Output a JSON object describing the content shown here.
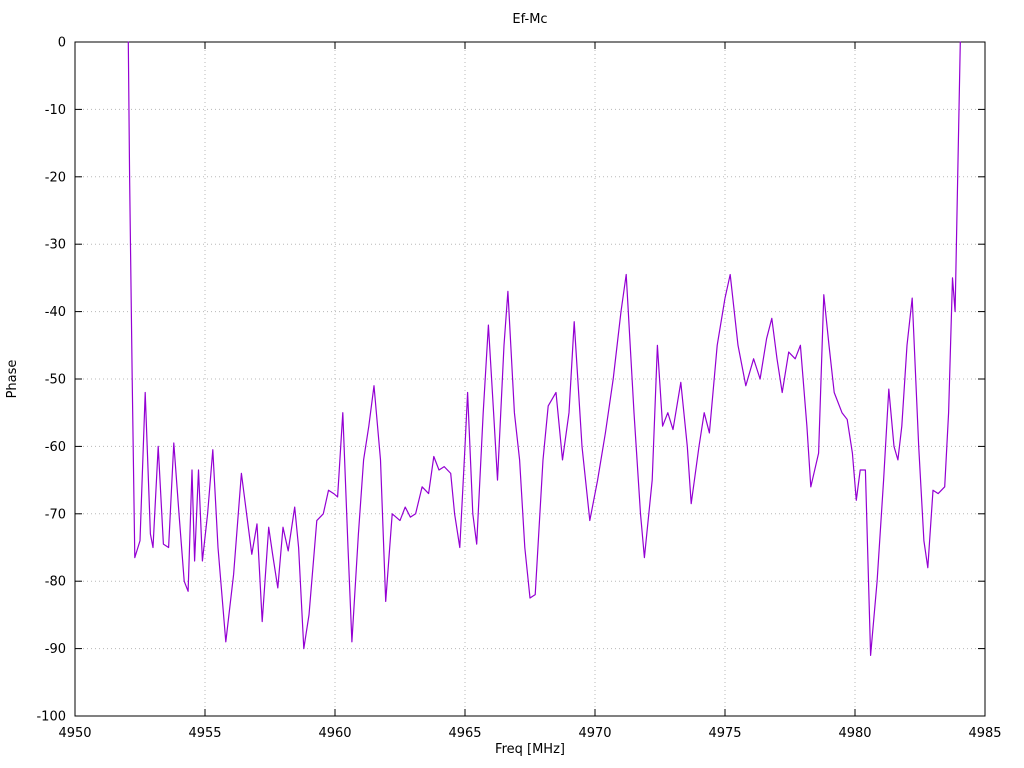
{
  "chart_data": {
    "type": "line",
    "title": "Ef-Mc",
    "xlabel": "Freq [MHz]",
    "ylabel": "Phase",
    "xlim": [
      4950,
      4985
    ],
    "ylim": [
      -100,
      0
    ],
    "xticks": [
      4950,
      4955,
      4960,
      4965,
      4970,
      4975,
      4980,
      4985
    ],
    "yticks": [
      0,
      -10,
      -20,
      -30,
      -40,
      -50,
      -60,
      -70,
      -80,
      -90,
      -100
    ],
    "grid": true,
    "legend": "none",
    "line_color": "#9400d3",
    "grid_color": "#b8b8b8",
    "border_color": "#000000",
    "series_name": "Ef-Mc",
    "points": [
      [
        4952.05,
        0
      ],
      [
        4952.1,
        -20
      ],
      [
        4952.2,
        -50
      ],
      [
        4952.3,
        -76.5
      ],
      [
        4952.5,
        -74
      ],
      [
        4952.7,
        -52
      ],
      [
        4952.9,
        -73
      ],
      [
        4953.0,
        -75
      ],
      [
        4953.2,
        -60
      ],
      [
        4953.4,
        -74.5
      ],
      [
        4953.6,
        -75
      ],
      [
        4953.8,
        -59.5
      ],
      [
        4954.0,
        -70
      ],
      [
        4954.2,
        -80
      ],
      [
        4954.35,
        -81.5
      ],
      [
        4954.5,
        -63.5
      ],
      [
        4954.6,
        -77
      ],
      [
        4954.75,
        -63.5
      ],
      [
        4954.9,
        -77
      ],
      [
        4955.1,
        -70
      ],
      [
        4955.3,
        -60.5
      ],
      [
        4955.5,
        -75
      ],
      [
        4955.8,
        -89
      ],
      [
        4956.1,
        -79
      ],
      [
        4956.4,
        -64
      ],
      [
        4956.6,
        -70
      ],
      [
        4956.8,
        -76
      ],
      [
        4957.0,
        -71.5
      ],
      [
        4957.2,
        -86
      ],
      [
        4957.45,
        -72
      ],
      [
        4957.6,
        -76
      ],
      [
        4957.8,
        -81
      ],
      [
        4958.0,
        -72
      ],
      [
        4958.2,
        -75.5
      ],
      [
        4958.45,
        -69
      ],
      [
        4958.6,
        -75
      ],
      [
        4958.8,
        -90
      ],
      [
        4959.0,
        -85
      ],
      [
        4959.3,
        -71
      ],
      [
        4959.55,
        -70
      ],
      [
        4959.75,
        -66.5
      ],
      [
        4959.95,
        -67
      ],
      [
        4960.1,
        -67.5
      ],
      [
        4960.3,
        -55
      ],
      [
        4960.5,
        -75
      ],
      [
        4960.65,
        -89
      ],
      [
        4960.9,
        -73
      ],
      [
        4961.1,
        -62
      ],
      [
        4961.3,
        -57
      ],
      [
        4961.5,
        -51
      ],
      [
        4961.75,
        -62
      ],
      [
        4961.95,
        -83
      ],
      [
        4962.2,
        -70
      ],
      [
        4962.5,
        -71
      ],
      [
        4962.7,
        -69
      ],
      [
        4962.9,
        -70.5
      ],
      [
        4963.1,
        -70
      ],
      [
        4963.35,
        -66
      ],
      [
        4963.6,
        -67
      ],
      [
        4963.8,
        -61.5
      ],
      [
        4964.0,
        -63.5
      ],
      [
        4964.2,
        -63
      ],
      [
        4964.45,
        -64
      ],
      [
        4964.6,
        -70
      ],
      [
        4964.8,
        -75
      ],
      [
        4965.0,
        -60
      ],
      [
        4965.1,
        -52
      ],
      [
        4965.3,
        -70
      ],
      [
        4965.45,
        -74.5
      ],
      [
        4965.7,
        -55
      ],
      [
        4965.9,
        -42
      ],
      [
        4966.1,
        -55
      ],
      [
        4966.25,
        -65
      ],
      [
        4966.5,
        -45
      ],
      [
        4966.65,
        -37
      ],
      [
        4966.9,
        -55
      ],
      [
        4967.1,
        -62
      ],
      [
        4967.3,
        -75
      ],
      [
        4967.5,
        -82.5
      ],
      [
        4967.7,
        -82
      ],
      [
        4968.0,
        -62
      ],
      [
        4968.2,
        -54
      ],
      [
        4968.5,
        -52
      ],
      [
        4968.75,
        -62
      ],
      [
        4969.0,
        -55
      ],
      [
        4969.2,
        -41.5
      ],
      [
        4969.5,
        -60
      ],
      [
        4969.8,
        -71
      ],
      [
        4970.1,
        -65
      ],
      [
        4970.4,
        -58
      ],
      [
        4970.7,
        -50
      ],
      [
        4971.0,
        -40
      ],
      [
        4971.2,
        -34.5
      ],
      [
        4971.5,
        -55
      ],
      [
        4971.75,
        -70
      ],
      [
        4971.9,
        -76.5
      ],
      [
        4972.2,
        -65
      ],
      [
        4972.4,
        -45
      ],
      [
        4972.6,
        -57
      ],
      [
        4972.8,
        -55
      ],
      [
        4973.0,
        -57.5
      ],
      [
        4973.3,
        -50.5
      ],
      [
        4973.55,
        -60
      ],
      [
        4973.7,
        -68.5
      ],
      [
        4974.0,
        -60
      ],
      [
        4974.2,
        -55
      ],
      [
        4974.4,
        -58
      ],
      [
        4974.7,
        -45
      ],
      [
        4975.0,
        -38
      ],
      [
        4975.2,
        -34.5
      ],
      [
        4975.5,
        -45
      ],
      [
        4975.8,
        -51
      ],
      [
        4976.1,
        -47
      ],
      [
        4976.35,
        -50
      ],
      [
        4976.6,
        -44
      ],
      [
        4976.8,
        -41
      ],
      [
        4977.0,
        -47
      ],
      [
        4977.2,
        -52
      ],
      [
        4977.45,
        -46
      ],
      [
        4977.7,
        -47
      ],
      [
        4977.9,
        -45
      ],
      [
        4978.15,
        -57
      ],
      [
        4978.3,
        -66
      ],
      [
        4978.6,
        -61
      ],
      [
        4978.8,
        -37.5
      ],
      [
        4979.0,
        -45
      ],
      [
        4979.2,
        -52
      ],
      [
        4979.5,
        -55
      ],
      [
        4979.7,
        -56
      ],
      [
        4979.9,
        -61
      ],
      [
        4980.05,
        -68
      ],
      [
        4980.2,
        -63.5
      ],
      [
        4980.4,
        -63.5
      ],
      [
        4980.6,
        -91
      ],
      [
        4980.85,
        -80
      ],
      [
        4981.1,
        -65
      ],
      [
        4981.3,
        -51.5
      ],
      [
        4981.5,
        -60
      ],
      [
        4981.65,
        -62
      ],
      [
        4981.8,
        -57
      ],
      [
        4982.0,
        -45
      ],
      [
        4982.2,
        -38
      ],
      [
        4982.45,
        -60
      ],
      [
        4982.65,
        -74
      ],
      [
        4982.8,
        -78
      ],
      [
        4983.0,
        -66.5
      ],
      [
        4983.2,
        -67
      ],
      [
        4983.45,
        -66
      ],
      [
        4983.6,
        -55
      ],
      [
        4983.75,
        -35
      ],
      [
        4983.85,
        -40
      ],
      [
        4983.95,
        -20
      ],
      [
        4984.05,
        0
      ]
    ]
  }
}
